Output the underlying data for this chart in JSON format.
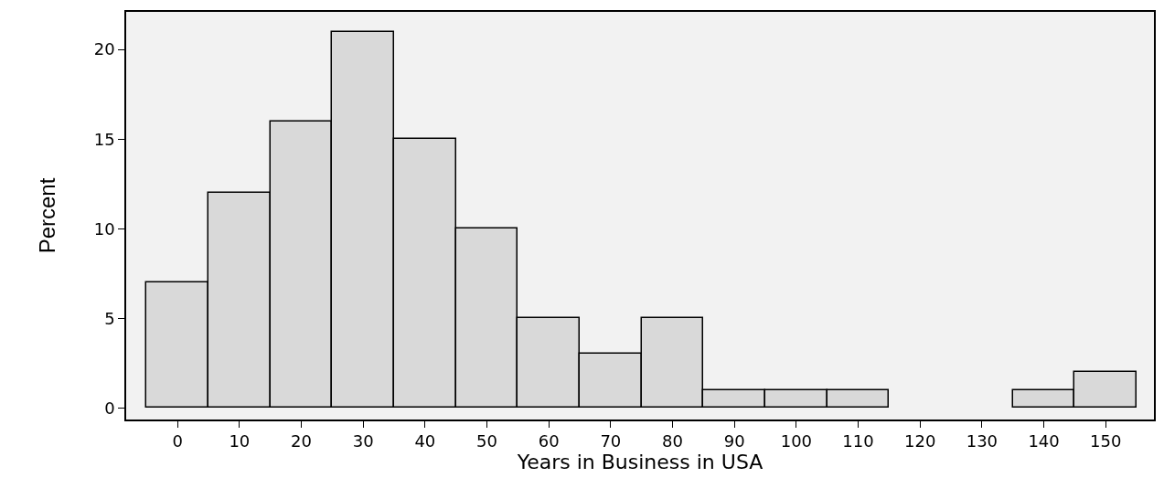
{
  "chart_data": {
    "type": "histogram",
    "xlabel": "Years in Business in USA",
    "ylabel": "Percent",
    "bins": [
      -5,
      5,
      15,
      25,
      35,
      45,
      55,
      65,
      75,
      85,
      95,
      105,
      115,
      125,
      135,
      145,
      155
    ],
    "values": [
      7,
      12,
      16,
      21,
      15,
      10,
      5,
      3,
      5,
      1,
      1,
      1,
      0,
      0,
      1,
      2
    ],
    "color": "#d9d9d9",
    "xlim": [
      -8.3,
      157.8
    ],
    "xticks": [
      0,
      10,
      20,
      30,
      40,
      50,
      60,
      70,
      80,
      90,
      100,
      110,
      120,
      130,
      140,
      150
    ],
    "ylim": [
      -0.65,
      22.1
    ],
    "yticks": [
      0,
      5,
      10,
      15,
      20
    ],
    "grid": false,
    "legend": false
  }
}
